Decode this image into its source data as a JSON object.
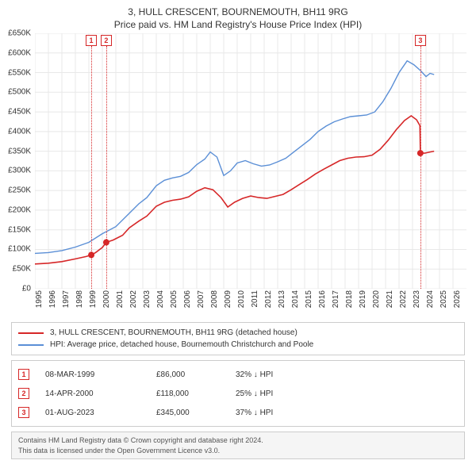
{
  "title_line1": "3, HULL CRESCENT, BOURNEMOUTH, BH11 9RG",
  "title_line2": "Price paid vs. HM Land Registry's House Price Index (HPI)",
  "chart": {
    "type": "line",
    "background_color": "#ffffff",
    "grid_color": "#e8e8e8",
    "axis_color": "#cccccc",
    "x_axis": {
      "min": 1995,
      "max": 2027,
      "ticks": [
        1995,
        1996,
        1997,
        1998,
        1999,
        2000,
        2001,
        2002,
        2003,
        2004,
        2005,
        2006,
        2007,
        2008,
        2009,
        2010,
        2011,
        2012,
        2013,
        2014,
        2015,
        2016,
        2017,
        2018,
        2019,
        2020,
        2021,
        2022,
        2023,
        2024,
        2025,
        2026
      ],
      "tick_fontsize": 10
    },
    "y_axis": {
      "min": 0,
      "max": 650000,
      "ticks": [
        0,
        50000,
        100000,
        150000,
        200000,
        250000,
        300000,
        350000,
        400000,
        450000,
        500000,
        550000,
        600000,
        650000
      ],
      "tick_labels": [
        "£0",
        "£50K",
        "£100K",
        "£150K",
        "£200K",
        "£250K",
        "£300K",
        "£350K",
        "£400K",
        "£450K",
        "£500K",
        "£550K",
        "£600K",
        "£650K"
      ],
      "tick_fontsize": 10
    },
    "series": [
      {
        "id": "property",
        "color": "#d62728",
        "line_width": 1.6,
        "legend_label": "3, HULL CRESCENT, BOURNEMOUTH, BH11 9RG (detached house)",
        "points": [
          [
            1995.0,
            63000
          ],
          [
            1996.0,
            65000
          ],
          [
            1997.0,
            69000
          ],
          [
            1998.0,
            76000
          ],
          [
            1998.8,
            82000
          ],
          [
            1999.18,
            86000
          ],
          [
            1999.5,
            92000
          ],
          [
            2000.0,
            105000
          ],
          [
            2000.29,
            118000
          ],
          [
            2000.8,
            124000
          ],
          [
            2001.5,
            136000
          ],
          [
            2002.0,
            155000
          ],
          [
            2002.7,
            172000
          ],
          [
            2003.3,
            185000
          ],
          [
            2004.0,
            210000
          ],
          [
            2004.6,
            220000
          ],
          [
            2005.2,
            225000
          ],
          [
            2005.8,
            228000
          ],
          [
            2006.4,
            234000
          ],
          [
            2007.0,
            248000
          ],
          [
            2007.6,
            257000
          ],
          [
            2008.2,
            252000
          ],
          [
            2008.8,
            232000
          ],
          [
            2009.3,
            208000
          ],
          [
            2009.8,
            220000
          ],
          [
            2010.4,
            230000
          ],
          [
            2011.0,
            236000
          ],
          [
            2011.6,
            232000
          ],
          [
            2012.2,
            230000
          ],
          [
            2012.8,
            235000
          ],
          [
            2013.4,
            240000
          ],
          [
            2014.0,
            252000
          ],
          [
            2014.6,
            265000
          ],
          [
            2015.2,
            278000
          ],
          [
            2015.8,
            292000
          ],
          [
            2016.4,
            304000
          ],
          [
            2017.0,
            315000
          ],
          [
            2017.6,
            326000
          ],
          [
            2018.2,
            332000
          ],
          [
            2018.8,
            335000
          ],
          [
            2019.4,
            336000
          ],
          [
            2020.0,
            340000
          ],
          [
            2020.6,
            355000
          ],
          [
            2021.2,
            378000
          ],
          [
            2021.8,
            405000
          ],
          [
            2022.4,
            428000
          ],
          [
            2022.9,
            440000
          ],
          [
            2023.3,
            430000
          ],
          [
            2023.55,
            415000
          ],
          [
            2023.58,
            345000
          ],
          [
            2023.9,
            345000
          ],
          [
            2024.3,
            348000
          ],
          [
            2024.6,
            350000
          ]
        ],
        "markers": [
          {
            "x": 1999.18,
            "y": 86000
          },
          {
            "x": 2000.29,
            "y": 118000
          },
          {
            "x": 2023.58,
            "y": 345000
          }
        ],
        "marker_color": "#d62728",
        "marker_size": 4
      },
      {
        "id": "hpi",
        "color": "#5b8fd6",
        "line_width": 1.4,
        "legend_label": "HPI: Average price, detached house, Bournemouth Christchurch and Poole",
        "points": [
          [
            1995.0,
            90000
          ],
          [
            1996.0,
            92000
          ],
          [
            1997.0,
            97000
          ],
          [
            1998.0,
            106000
          ],
          [
            1999.0,
            118000
          ],
          [
            2000.0,
            140000
          ],
          [
            2001.0,
            158000
          ],
          [
            2002.0,
            192000
          ],
          [
            2002.7,
            216000
          ],
          [
            2003.3,
            232000
          ],
          [
            2004.0,
            262000
          ],
          [
            2004.6,
            276000
          ],
          [
            2005.2,
            282000
          ],
          [
            2005.8,
            286000
          ],
          [
            2006.4,
            296000
          ],
          [
            2007.0,
            316000
          ],
          [
            2007.6,
            330000
          ],
          [
            2008.0,
            348000
          ],
          [
            2008.5,
            335000
          ],
          [
            2009.0,
            288000
          ],
          [
            2009.5,
            300000
          ],
          [
            2010.0,
            320000
          ],
          [
            2010.6,
            326000
          ],
          [
            2011.2,
            318000
          ],
          [
            2011.8,
            312000
          ],
          [
            2012.4,
            315000
          ],
          [
            2013.0,
            323000
          ],
          [
            2013.6,
            332000
          ],
          [
            2014.2,
            348000
          ],
          [
            2014.8,
            364000
          ],
          [
            2015.4,
            380000
          ],
          [
            2016.0,
            400000
          ],
          [
            2016.6,
            414000
          ],
          [
            2017.2,
            425000
          ],
          [
            2017.8,
            432000
          ],
          [
            2018.4,
            438000
          ],
          [
            2019.0,
            440000
          ],
          [
            2019.6,
            442000
          ],
          [
            2020.2,
            450000
          ],
          [
            2020.8,
            476000
          ],
          [
            2021.4,
            510000
          ],
          [
            2022.0,
            550000
          ],
          [
            2022.6,
            580000
          ],
          [
            2023.1,
            570000
          ],
          [
            2023.6,
            555000
          ],
          [
            2024.0,
            540000
          ],
          [
            2024.3,
            548000
          ],
          [
            2024.6,
            545000
          ]
        ]
      }
    ],
    "flags": [
      {
        "num": "1",
        "x": 1999.18,
        "color": "#d62728"
      },
      {
        "num": "2",
        "x": 2000.29,
        "color": "#d62728"
      },
      {
        "num": "3",
        "x": 2023.58,
        "color": "#d62728"
      }
    ]
  },
  "legend": {
    "series1_color": "#d62728",
    "series1_label": "3, HULL CRESCENT, BOURNEMOUTH, BH11 9RG (detached house)",
    "series2_color": "#5b8fd6",
    "series2_label": "HPI: Average price, detached house, Bournemouth Christchurch and Poole"
  },
  "transactions": [
    {
      "num": "1",
      "flag_color": "#d62728",
      "date": "08-MAR-1999",
      "price": "£86,000",
      "delta": "32% ↓ HPI"
    },
    {
      "num": "2",
      "flag_color": "#d62728",
      "date": "14-APR-2000",
      "price": "£118,000",
      "delta": "25% ↓ HPI"
    },
    {
      "num": "3",
      "flag_color": "#d62728",
      "date": "01-AUG-2023",
      "price": "£345,000",
      "delta": "37% ↓ HPI"
    }
  ],
  "footer": {
    "line1": "Contains HM Land Registry data © Crown copyright and database right 2024.",
    "line2": "This data is licensed under the Open Government Licence v3.0."
  }
}
